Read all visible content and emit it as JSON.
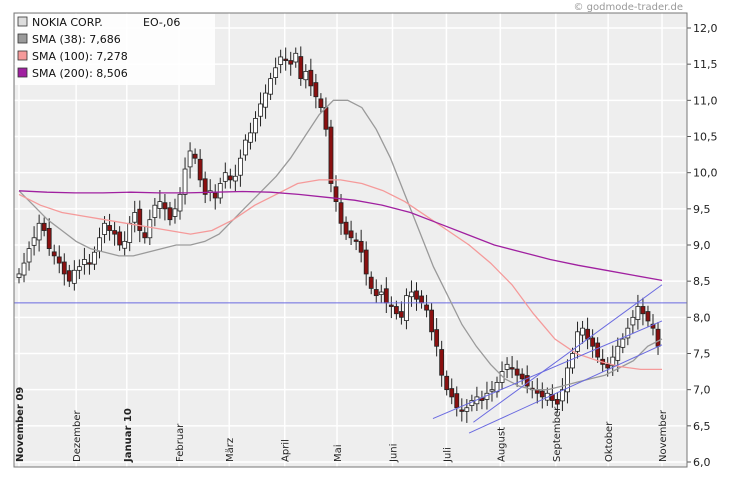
{
  "credit": "© godmode-trader.de",
  "legend": [
    {
      "label": "NOKIA CORP.",
      "extra": "EO-,06",
      "color": "#dddddd"
    },
    {
      "label": "SMA (38): 7,686",
      "color": "#9a9a9a"
    },
    {
      "label": "SMA (100): 7,278",
      "color": "#f59a9a"
    },
    {
      "label": "SMA (200): 8,506",
      "color": "#a020a0"
    }
  ],
  "chart_data": {
    "type": "candlestick",
    "y_ticks": [
      "12,0",
      "11,5",
      "11,0",
      "10,5",
      "10,0",
      "9,5",
      "9,0",
      "8,5",
      "8,0",
      "7,5",
      "7,0",
      "6,5",
      "6,0"
    ],
    "ylim": [
      6.0,
      12.0
    ],
    "x_ticks": [
      {
        "label": "November 09",
        "bold": true
      },
      {
        "label": "Dezember",
        "bold": false
      },
      {
        "label": "Januar 10",
        "bold": true
      },
      {
        "label": "Februar",
        "bold": false
      },
      {
        "label": "März",
        "bold": false
      },
      {
        "label": "April",
        "bold": false
      },
      {
        "label": "Mai",
        "bold": false
      },
      {
        "label": "Juni",
        "bold": false
      },
      {
        "label": "Juli",
        "bold": false
      },
      {
        "label": "August",
        "bold": false
      },
      {
        "label": "September",
        "bold": false
      },
      {
        "label": "Oktober",
        "bold": false
      },
      {
        "label": "November",
        "bold": false
      }
    ],
    "x_tick_positions": [
      0,
      1.06,
      2.0,
      2.97,
      3.9,
      4.93,
      5.9,
      6.93,
      7.93,
      8.93,
      9.96,
      10.93,
      11.93
    ],
    "price_close": [
      8.6,
      8.75,
      8.95,
      9.1,
      9.3,
      9.2,
      8.95,
      8.85,
      8.75,
      8.6,
      8.5,
      8.65,
      8.7,
      8.8,
      8.75,
      8.9,
      9.1,
      9.3,
      9.2,
      9.15,
      9.0,
      9.05,
      9.3,
      9.45,
      9.2,
      9.1,
      9.35,
      9.55,
      9.6,
      9.5,
      9.35,
      9.5,
      9.7,
      10.05,
      10.3,
      10.2,
      9.9,
      9.7,
      9.75,
      9.65,
      9.85,
      10.0,
      9.9,
      9.95,
      10.2,
      10.45,
      10.55,
      10.75,
      10.95,
      11.1,
      11.3,
      11.45,
      11.6,
      11.55,
      11.5,
      11.65,
      11.3,
      11.4,
      11.2,
      11.05,
      10.9,
      10.6,
      9.85,
      9.6,
      9.3,
      9.15,
      9.1,
      9.05,
      8.9,
      8.6,
      8.4,
      8.3,
      8.35,
      8.2,
      8.15,
      8.05,
      8.0,
      8.3,
      8.35,
      8.25,
      8.2,
      8.1,
      7.8,
      7.6,
      7.2,
      7.0,
      6.9,
      6.75,
      6.7,
      6.75,
      6.85,
      6.9,
      6.85,
      6.95,
      7.0,
      7.1,
      7.25,
      7.35,
      7.3,
      7.2,
      7.15,
      7.05,
      7.0,
      6.95,
      6.9,
      6.95,
      6.85,
      6.8,
      7.0,
      7.3,
      7.5,
      7.8,
      7.85,
      7.7,
      7.6,
      7.45,
      7.35,
      7.3,
      7.45,
      7.6,
      7.7,
      7.85,
      8.0,
      8.15,
      8.05,
      7.95,
      7.85,
      7.6
    ],
    "sma_38": [
      9.75,
      9.55,
      9.35,
      9.2,
      9.05,
      8.95,
      8.9,
      8.85,
      8.85,
      8.9,
      8.95,
      9.0,
      9.0,
      9.05,
      9.15,
      9.35,
      9.55,
      9.75,
      9.95,
      10.2,
      10.5,
      10.8,
      11.0,
      11.0,
      10.9,
      10.6,
      10.2,
      9.7,
      9.2,
      8.7,
      8.3,
      7.9,
      7.6,
      7.35,
      7.15,
      7.05,
      7.0,
      7.0,
      7.05,
      7.1,
      7.15,
      7.2,
      7.3,
      7.4,
      7.6,
      7.7
    ],
    "sma_100": [
      9.7,
      9.55,
      9.45,
      9.4,
      9.35,
      9.3,
      9.25,
      9.2,
      9.15,
      9.2,
      9.35,
      9.55,
      9.7,
      9.85,
      9.9,
      9.9,
      9.85,
      9.75,
      9.6,
      9.4,
      9.2,
      9.0,
      8.75,
      8.45,
      8.05,
      7.7,
      7.5,
      7.4,
      7.32,
      7.28,
      7.28
    ],
    "sma_200": [
      9.75,
      9.73,
      9.72,
      9.72,
      9.73,
      9.72,
      9.72,
      9.73,
      9.74,
      9.73,
      9.7,
      9.66,
      9.62,
      9.55,
      9.45,
      9.3,
      9.15,
      9.0,
      8.9,
      8.8,
      8.72,
      8.65,
      8.58,
      8.51
    ],
    "horizontal_line": 8.2,
    "channel_lines": [
      {
        "from": [
          8.43,
          6.55
        ],
        "to": [
          11.93,
          8.45
        ]
      },
      {
        "from": [
          7.68,
          6.6
        ],
        "to": [
          11.93,
          7.95
        ]
      },
      {
        "from": [
          8.35,
          6.4
        ],
        "to": [
          11.93,
          7.62
        ]
      }
    ]
  }
}
